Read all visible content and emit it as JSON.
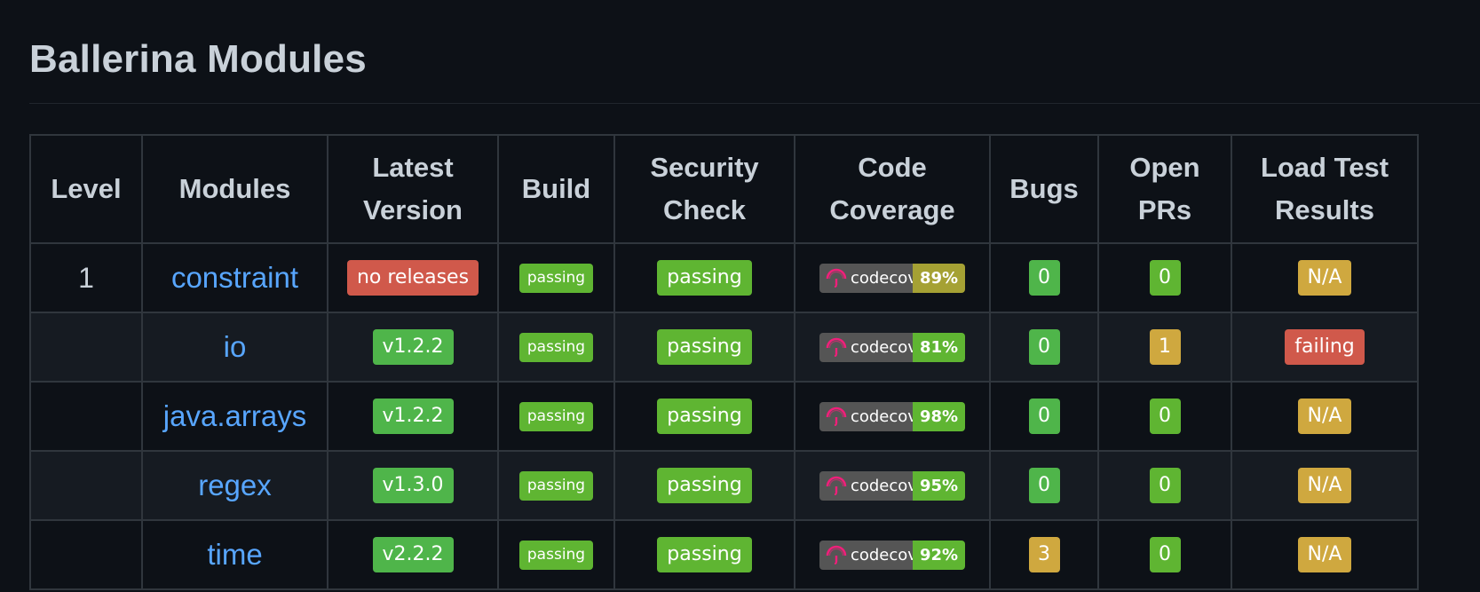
{
  "page": {
    "title": "Ballerina Modules"
  },
  "table": {
    "headers": [
      "Level",
      "Modules",
      "Latest\nVersion",
      "Build",
      "Security\nCheck",
      "Code\nCoverage",
      "Bugs",
      "Open\nPRs",
      "Load Test\nResults"
    ],
    "header_lines": [
      [
        "Level"
      ],
      [
        "Modules"
      ],
      [
        "Latest",
        "Version"
      ],
      [
        "Build"
      ],
      [
        "Security",
        "Check"
      ],
      [
        "Code",
        "Coverage"
      ],
      [
        "Bugs"
      ],
      [
        "Open",
        "PRs"
      ],
      [
        "Load Test",
        "Results"
      ]
    ],
    "rows": [
      {
        "level": "1",
        "module": "constraint",
        "version": "no releases",
        "version_color": "#d0594b",
        "build": "passing",
        "security": "passing",
        "coverage_label": "codecov",
        "coverage": "89%",
        "coverage_color": "#a5a134",
        "bugs": "0",
        "bugs_color": "#4fb54a",
        "open_prs": "0",
        "open_prs_color": "#5fb532",
        "load_test": "N/A",
        "load_test_color": "#cfa83f"
      },
      {
        "level": "",
        "module": "io",
        "version": "v1.2.2",
        "version_color": "#4fb54a",
        "build": "passing",
        "security": "passing",
        "coverage_label": "codecov",
        "coverage": "81%",
        "coverage_color": "#5fb532",
        "bugs": "0",
        "bugs_color": "#4fb54a",
        "open_prs": "1",
        "open_prs_color": "#cfa83f",
        "load_test": "failing",
        "load_test_color": "#d0594b"
      },
      {
        "level": "",
        "module": "java.arrays",
        "version": "v1.2.2",
        "version_color": "#4fb54a",
        "build": "passing",
        "security": "passing",
        "coverage_label": "codecov",
        "coverage": "98%",
        "coverage_color": "#5fb532",
        "bugs": "0",
        "bugs_color": "#4fb54a",
        "open_prs": "0",
        "open_prs_color": "#5fb532",
        "load_test": "N/A",
        "load_test_color": "#cfa83f"
      },
      {
        "level": "",
        "module": "regex",
        "version": "v1.3.0",
        "version_color": "#4fb54a",
        "build": "passing",
        "security": "passing",
        "coverage_label": "codecov",
        "coverage": "95%",
        "coverage_color": "#5fb532",
        "bugs": "0",
        "bugs_color": "#4fb54a",
        "open_prs": "0",
        "open_prs_color": "#5fb532",
        "load_test": "N/A",
        "load_test_color": "#cfa83f"
      },
      {
        "level": "",
        "module": "time",
        "version": "v2.2.2",
        "version_color": "#4fb54a",
        "build": "passing",
        "security": "passing",
        "coverage_label": "codecov",
        "coverage": "92%",
        "coverage_color": "#5fb532",
        "bugs": "3",
        "bugs_color": "#cfa83f",
        "open_prs": "0",
        "open_prs_color": "#5fb532",
        "load_test": "N/A",
        "load_test_color": "#cfa83f"
      }
    ]
  },
  "icons": {
    "codecov": "codecov-umbrella-icon"
  },
  "colors": {
    "background": "#0d1117",
    "link": "#58a6ff",
    "border": "#30363d",
    "badge_green": "#4fb54a",
    "badge_bright_green": "#5fb532",
    "badge_red": "#d0594b",
    "badge_yellow": "#cfa83f",
    "codecov_gray": "#555555",
    "codecov_logo": "#f01f7a"
  }
}
